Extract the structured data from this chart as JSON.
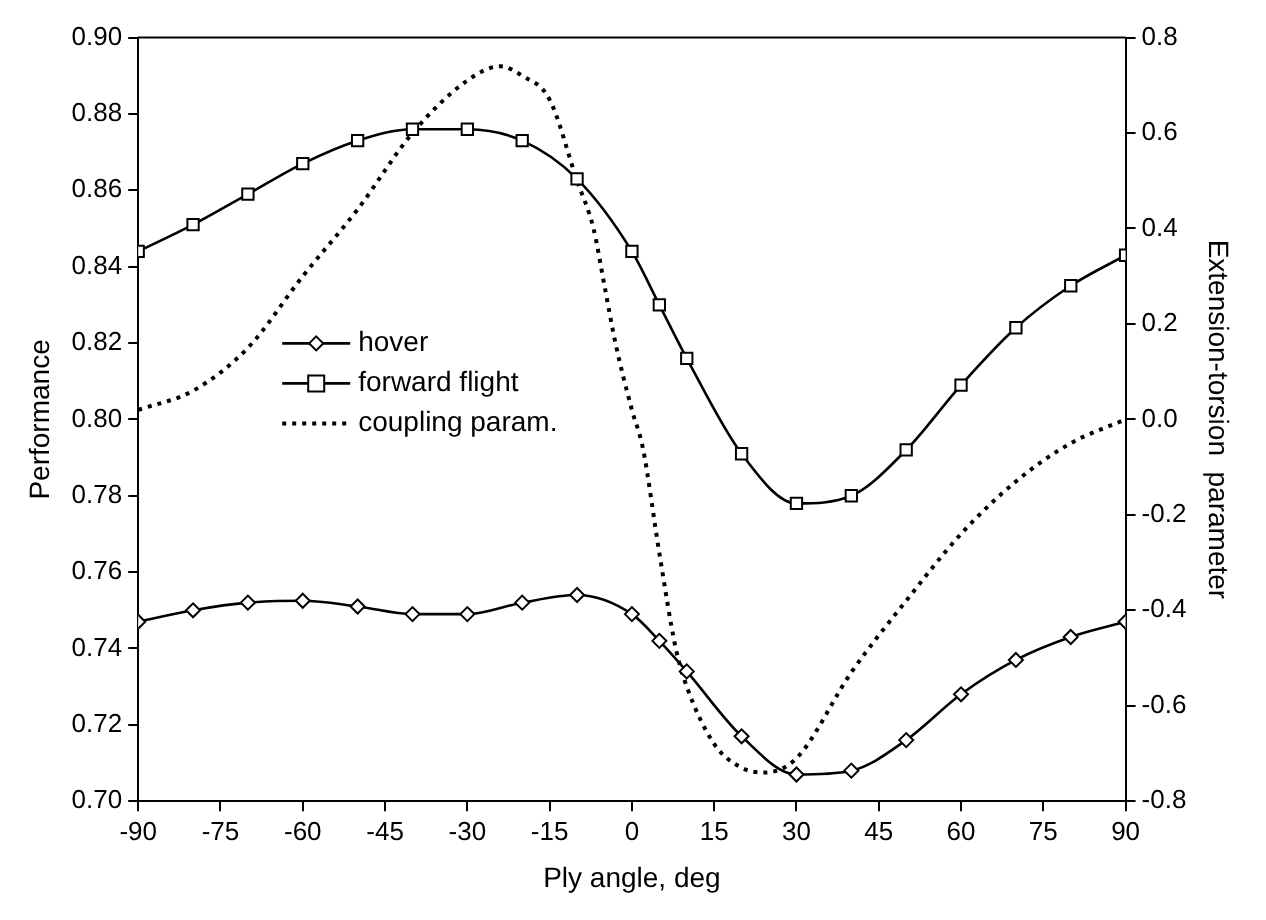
{
  "chart_data": {
    "type": "line",
    "xlabel": "Ply angle, deg",
    "ylabel": "Performance",
    "y2label": "Extension-torsion  parameter",
    "xlim": [
      -90,
      90
    ],
    "xticks": [
      -90,
      -75,
      -60,
      -45,
      -30,
      -15,
      0,
      15,
      30,
      45,
      60,
      75,
      90
    ],
    "ylim": [
      0.7,
      0.9
    ],
    "yticks": [
      {
        "value": 0.7,
        "label": "0.70"
      },
      0.72,
      0.74,
      0.76,
      0.78,
      {
        "value": 0.8,
        "label": "0.80"
      },
      0.82,
      0.84,
      0.86,
      0.88,
      {
        "value": 0.9,
        "label": "0.90"
      }
    ],
    "y2lim": [
      -0.8,
      0.8
    ],
    "y2ticks": [
      -0.8,
      -0.6,
      -0.4,
      -0.2,
      {
        "value": 0,
        "label": "0.0"
      },
      0.2,
      0.4,
      0.6,
      0.8
    ],
    "grid": false,
    "legend": "left",
    "series": [
      {
        "name": "hover",
        "color": "#000000",
        "marker": "diamond",
        "line_style": "solid",
        "x": [
          -90,
          -80,
          -70,
          -60,
          -50,
          -40,
          -30,
          -20,
          -10,
          0,
          5,
          10,
          20,
          30,
          40,
          50,
          60,
          70,
          80,
          90
        ],
        "values": [
          0.747,
          0.75,
          0.752,
          0.7525,
          0.751,
          0.749,
          0.749,
          0.752,
          0.754,
          0.749,
          0.742,
          0.734,
          0.717,
          0.707,
          0.708,
          0.716,
          0.728,
          0.737,
          0.743,
          0.747
        ]
      },
      {
        "name": "forward flight",
        "color": "#000000",
        "marker": "square",
        "line_style": "solid",
        "x": [
          -90,
          -80,
          -70,
          -60,
          -50,
          -40,
          -30,
          -20,
          -10,
          0,
          5,
          10,
          20,
          30,
          40,
          50,
          60,
          70,
          80,
          90
        ],
        "values": [
          0.844,
          0.851,
          0.859,
          0.867,
          0.873,
          0.876,
          0.876,
          0.873,
          0.863,
          0.844,
          0.83,
          0.816,
          0.791,
          0.778,
          0.78,
          0.792,
          0.809,
          0.824,
          0.835,
          0.843
        ]
      },
      {
        "name": "coupling param.",
        "color": "#000000",
        "marker": "none",
        "line_style": "dotted",
        "axis": "y2",
        "x": [
          -90,
          -80,
          -70,
          -60,
          -50,
          -40,
          -30,
          -24,
          -20,
          -15,
          -10,
          -7,
          -5,
          -3,
          0,
          2,
          5,
          8,
          10,
          15,
          20,
          24,
          30,
          40,
          50,
          60,
          70,
          80,
          90
        ],
        "values": [
          0.02,
          0.06,
          0.15,
          0.3,
          0.44,
          0.6,
          0.71,
          0.74,
          0.72,
          0.67,
          0.5,
          0.4,
          0.28,
          0.16,
          0.02,
          -0.06,
          -0.28,
          -0.48,
          -0.56,
          -0.68,
          -0.73,
          -0.74,
          -0.71,
          -0.53,
          -0.38,
          -0.24,
          -0.13,
          -0.05,
          0.0
        ]
      }
    ]
  }
}
